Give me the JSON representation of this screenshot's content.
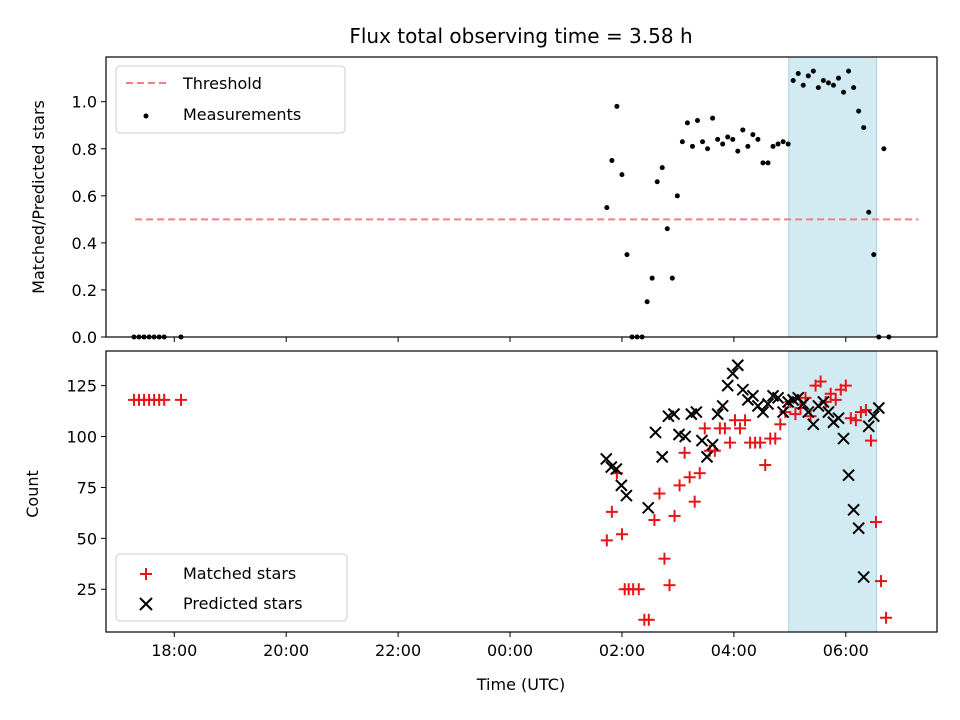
{
  "chart_data": {
    "title": "Flux total observing time = 3.58 h",
    "xlabel": "Time (UTC)",
    "x_ticks": [
      "18:00",
      "20:00",
      "22:00",
      "00:00",
      "02:00",
      "04:00",
      "06:00"
    ],
    "x_tick_hours": [
      18,
      20,
      22,
      24,
      26,
      28,
      30
    ],
    "xlim_hours": [
      16.78,
      31.63
    ],
    "shaded_interval_hours": [
      28.98,
      30.55
    ],
    "shade_color": "#d2eaf1",
    "panels": [
      {
        "type": "scatter",
        "ylabel": "Matched/Predicted stars",
        "ylim": [
          0,
          1.19
        ],
        "y_ticks": [
          0.0,
          0.2,
          0.4,
          0.6,
          0.8,
          1.0
        ],
        "y_tick_labels": [
          "0.0",
          "0.2",
          "0.4",
          "0.6",
          "0.8",
          "1.0"
        ],
        "legend": [
          "Threshold",
          "Measurements"
        ],
        "threshold": {
          "name": "Threshold",
          "value": 0.5,
          "x_start": 17.3,
          "x_end": 31.3,
          "color": "#f08080"
        },
        "measurements": {
          "name": "Measurements",
          "color": "#000000",
          "x": [
            17.28,
            17.37,
            17.46,
            17.55,
            17.64,
            17.73,
            17.82,
            18.12,
            25.73,
            25.82,
            25.91,
            26.0,
            26.09,
            26.18,
            26.27,
            26.36,
            26.45,
            26.54,
            26.63,
            26.72,
            26.81,
            26.9,
            26.99,
            27.08,
            27.17,
            27.26,
            27.35,
            27.44,
            27.53,
            27.62,
            27.71,
            27.8,
            27.89,
            27.98,
            28.07,
            28.16,
            28.25,
            28.34,
            28.43,
            28.52,
            28.61,
            28.7,
            28.79,
            28.88,
            28.97,
            29.06,
            29.15,
            29.24,
            29.33,
            29.42,
            29.51,
            29.6,
            29.69,
            29.78,
            29.87,
            29.96,
            30.05,
            30.14,
            30.23,
            30.32,
            30.41,
            30.5,
            30.59,
            30.68,
            30.77
          ],
          "y": [
            0,
            0,
            0,
            0,
            0,
            0,
            0,
            0,
            0.55,
            0.75,
            0.98,
            0.69,
            0.35,
            0,
            0,
            0,
            0.15,
            0.25,
            0.66,
            0.72,
            0.46,
            0.25,
            0.6,
            0.83,
            0.91,
            0.81,
            0.92,
            0.83,
            0.8,
            0.93,
            0.84,
            0.82,
            0.85,
            0.84,
            0.79,
            0.88,
            0.81,
            0.86,
            0.84,
            0.74,
            0.74,
            0.81,
            0.82,
            0.83,
            0.82,
            1.09,
            1.12,
            1.07,
            1.11,
            1.13,
            1.06,
            1.09,
            1.08,
            1.07,
            1.1,
            1.04,
            1.13,
            1.06,
            0.96,
            0.89,
            0.53,
            0.35,
            0,
            0.8,
            0.0
          ]
        }
      },
      {
        "type": "scatter",
        "ylabel": "Count",
        "ylim": [
          4,
          142
        ],
        "y_ticks": [
          25,
          50,
          75,
          100,
          125
        ],
        "y_tick_labels": [
          "25",
          "50",
          "75",
          "100",
          "125"
        ],
        "legend": [
          "Matched stars",
          "Predicted stars"
        ],
        "series": [
          {
            "name": "Matched stars",
            "marker": "plus",
            "color": "#e8141a",
            "x": [
              17.28,
              17.37,
              17.46,
              17.55,
              17.64,
              17.73,
              17.82,
              18.12,
              25.73,
              25.82,
              25.91,
              26.0,
              26.05,
              26.12,
              26.2,
              26.3,
              26.4,
              26.48,
              26.58,
              26.67,
              26.76,
              26.85,
              26.94,
              27.03,
              27.12,
              27.21,
              27.3,
              27.39,
              27.48,
              27.57,
              27.66,
              27.75,
              27.84,
              27.93,
              28.02,
              28.11,
              28.2,
              28.29,
              28.38,
              28.47,
              28.56,
              28.65,
              28.74,
              28.83,
              28.92,
              29.01,
              29.1,
              29.19,
              29.28,
              29.37,
              29.46,
              29.55,
              29.64,
              29.73,
              29.82,
              29.91,
              30.0,
              30.09,
              30.18,
              30.27,
              30.36,
              30.45,
              30.54,
              30.63,
              30.72
            ],
            "y": [
              118,
              118,
              118,
              118,
              118,
              118,
              118,
              118,
              49,
              63,
              82,
              52,
              25,
              25,
              25,
              25,
              10,
              10,
              59,
              72,
              40,
              27,
              61,
              76,
              92,
              80,
              68,
              82,
              104,
              93,
              93,
              104,
              104,
              97,
              108,
              104,
              108,
              97,
              97,
              97,
              86,
              99,
              99,
              106,
              112,
              117,
              111,
              114,
              119,
              110,
              125,
              127,
              117,
              121,
              118,
              123,
              125,
              109,
              108,
              112,
              113,
              98,
              58,
              29,
              11
            ]
          },
          {
            "name": "Predicted stars",
            "marker": "x",
            "color": "#000000",
            "x": [
              25.72,
              25.81,
              25.9,
              25.99,
              26.08,
              26.47,
              26.6,
              26.72,
              26.83,
              26.93,
              27.02,
              27.13,
              27.24,
              27.33,
              27.43,
              27.52,
              27.62,
              27.71,
              27.8,
              27.89,
              27.98,
              28.07,
              28.16,
              28.25,
              28.34,
              28.43,
              28.52,
              28.61,
              28.7,
              28.79,
              28.88,
              28.97,
              29.06,
              29.15,
              29.24,
              29.33,
              29.42,
              29.51,
              29.6,
              29.69,
              29.78,
              29.87,
              29.96,
              30.05,
              30.14,
              30.23,
              30.32,
              30.41,
              30.5,
              30.59
            ],
            "y": [
              89,
              85,
              84,
              76,
              71,
              65,
              102,
              90,
              110,
              111,
              101,
              100,
              111,
              112,
              98,
              90,
              96,
              111,
              115,
              125,
              131,
              135,
              123,
              118,
              120,
              115,
              112,
              116,
              120,
              119,
              112,
              117,
              118,
              119,
              116,
              112,
              106,
              115,
              117,
              112,
              107,
              109,
              99,
              81,
              64,
              55,
              31,
              105,
              110,
              114
            ]
          }
        ]
      }
    ]
  }
}
